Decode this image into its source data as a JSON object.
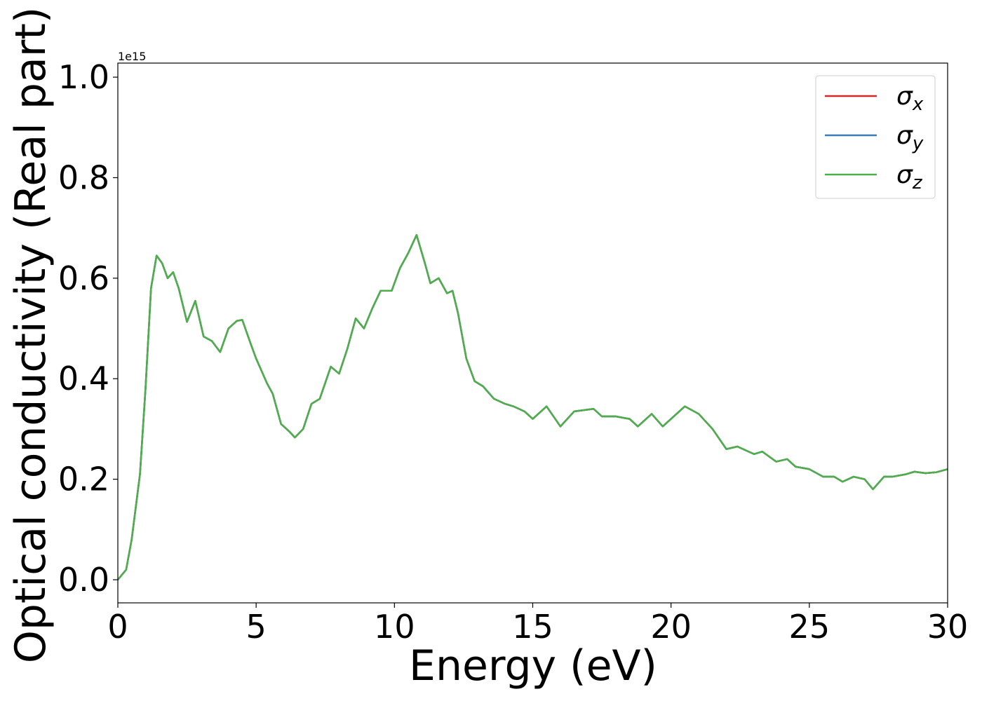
{
  "chart_data": {
    "type": "line",
    "xlabel": "Energy (eV)",
    "ylabel": "Optical conductivity (Real part)",
    "y_offset_label": "1e15",
    "xlim": [
      0,
      30
    ],
    "xticks": [
      0,
      5,
      10,
      15,
      20,
      25,
      30
    ],
    "ylim": [
      -0.046,
      1.028
    ],
    "yticks": [
      {
        "value": 0,
        "label": "0.0"
      },
      0.2,
      0.4,
      0.6,
      0.8,
      {
        "value": 1,
        "label": "1.0"
      }
    ],
    "grid": false,
    "legend": "upper right",
    "x": [
      0,
      0.3,
      0.5,
      0.8,
      1.0,
      1.2,
      1.4,
      1.6,
      1.8,
      2.0,
      2.2,
      2.5,
      2.8,
      3.1,
      3.4,
      3.7,
      4.0,
      4.3,
      4.5,
      4.8,
      5.0,
      5.4,
      5.6,
      5.9,
      6.2,
      6.4,
      6.7,
      7.0,
      7.3,
      7.7,
      8.0,
      8.3,
      8.6,
      8.9,
      9.2,
      9.5,
      9.9,
      10.2,
      10.5,
      10.8,
      11.1,
      11.3,
      11.6,
      11.9,
      12.1,
      12.3,
      12.6,
      12.9,
      13.2,
      13.6,
      14.0,
      14.3,
      14.7,
      15.0,
      15.5,
      16.0,
      16.5,
      17.2,
      17.5,
      18.0,
      18.5,
      18.8,
      19.3,
      19.7,
      20.0,
      20.5,
      21.0,
      21.5,
      22.0,
      22.4,
      23.0,
      23.3,
      23.8,
      24.2,
      24.5,
      25.0,
      25.5,
      25.9,
      26.2,
      26.6,
      27.0,
      27.3,
      27.7,
      28.0,
      28.5,
      28.8,
      29.2,
      29.6,
      30.0
    ],
    "series": [
      {
        "name": "σx",
        "color": "#d62728",
        "values": [
          0,
          0.02,
          0.08,
          0.21,
          0.38,
          0.58,
          0.645,
          0.63,
          0.6,
          0.612,
          0.58,
          0.513,
          0.555,
          0.484,
          0.475,
          0.453,
          0.5,
          0.515,
          0.517,
          0.47,
          0.44,
          0.39,
          0.37,
          0.31,
          0.295,
          0.283,
          0.3,
          0.35,
          0.36,
          0.424,
          0.41,
          0.46,
          0.52,
          0.5,
          0.54,
          0.575,
          0.575,
          0.62,
          0.65,
          0.686,
          0.63,
          0.59,
          0.6,
          0.57,
          0.575,
          0.53,
          0.44,
          0.395,
          0.385,
          0.36,
          0.35,
          0.345,
          0.335,
          0.32,
          0.345,
          0.305,
          0.335,
          0.34,
          0.325,
          0.325,
          0.32,
          0.305,
          0.33,
          0.305,
          0.32,
          0.345,
          0.33,
          0.3,
          0.26,
          0.265,
          0.25,
          0.255,
          0.235,
          0.24,
          0.225,
          0.22,
          0.205,
          0.205,
          0.195,
          0.205,
          0.2,
          0.18,
          0.205,
          0.205,
          0.21,
          0.215,
          0.212,
          0.214,
          0.22
        ]
      },
      {
        "name": "σy",
        "color": "#3a7bb8",
        "values": [
          0,
          0.02,
          0.08,
          0.21,
          0.38,
          0.58,
          0.645,
          0.63,
          0.6,
          0.612,
          0.58,
          0.513,
          0.555,
          0.484,
          0.475,
          0.453,
          0.5,
          0.515,
          0.517,
          0.47,
          0.44,
          0.39,
          0.37,
          0.31,
          0.295,
          0.283,
          0.3,
          0.35,
          0.36,
          0.424,
          0.41,
          0.46,
          0.52,
          0.5,
          0.54,
          0.575,
          0.575,
          0.62,
          0.65,
          0.686,
          0.63,
          0.59,
          0.6,
          0.57,
          0.575,
          0.53,
          0.44,
          0.395,
          0.385,
          0.36,
          0.35,
          0.345,
          0.335,
          0.32,
          0.345,
          0.305,
          0.335,
          0.34,
          0.325,
          0.325,
          0.32,
          0.305,
          0.33,
          0.305,
          0.32,
          0.345,
          0.33,
          0.3,
          0.26,
          0.265,
          0.25,
          0.255,
          0.235,
          0.24,
          0.225,
          0.22,
          0.205,
          0.205,
          0.195,
          0.205,
          0.2,
          0.18,
          0.205,
          0.205,
          0.21,
          0.215,
          0.212,
          0.214,
          0.22
        ]
      },
      {
        "name": "σz",
        "color": "#4daf4a",
        "values": [
          0,
          0.02,
          0.08,
          0.21,
          0.38,
          0.58,
          0.645,
          0.63,
          0.6,
          0.612,
          0.58,
          0.513,
          0.555,
          0.484,
          0.475,
          0.453,
          0.5,
          0.515,
          0.517,
          0.47,
          0.44,
          0.39,
          0.37,
          0.31,
          0.295,
          0.283,
          0.3,
          0.35,
          0.36,
          0.424,
          0.41,
          0.46,
          0.52,
          0.5,
          0.54,
          0.575,
          0.575,
          0.62,
          0.65,
          0.686,
          0.63,
          0.59,
          0.6,
          0.57,
          0.575,
          0.53,
          0.44,
          0.395,
          0.385,
          0.36,
          0.35,
          0.345,
          0.335,
          0.32,
          0.345,
          0.305,
          0.335,
          0.34,
          0.325,
          0.325,
          0.32,
          0.305,
          0.33,
          0.305,
          0.32,
          0.345,
          0.33,
          0.3,
          0.26,
          0.265,
          0.25,
          0.255,
          0.235,
          0.24,
          0.225,
          0.22,
          0.205,
          0.205,
          0.195,
          0.205,
          0.2,
          0.18,
          0.205,
          0.205,
          0.21,
          0.215,
          0.212,
          0.214,
          0.22
        ]
      }
    ]
  }
}
